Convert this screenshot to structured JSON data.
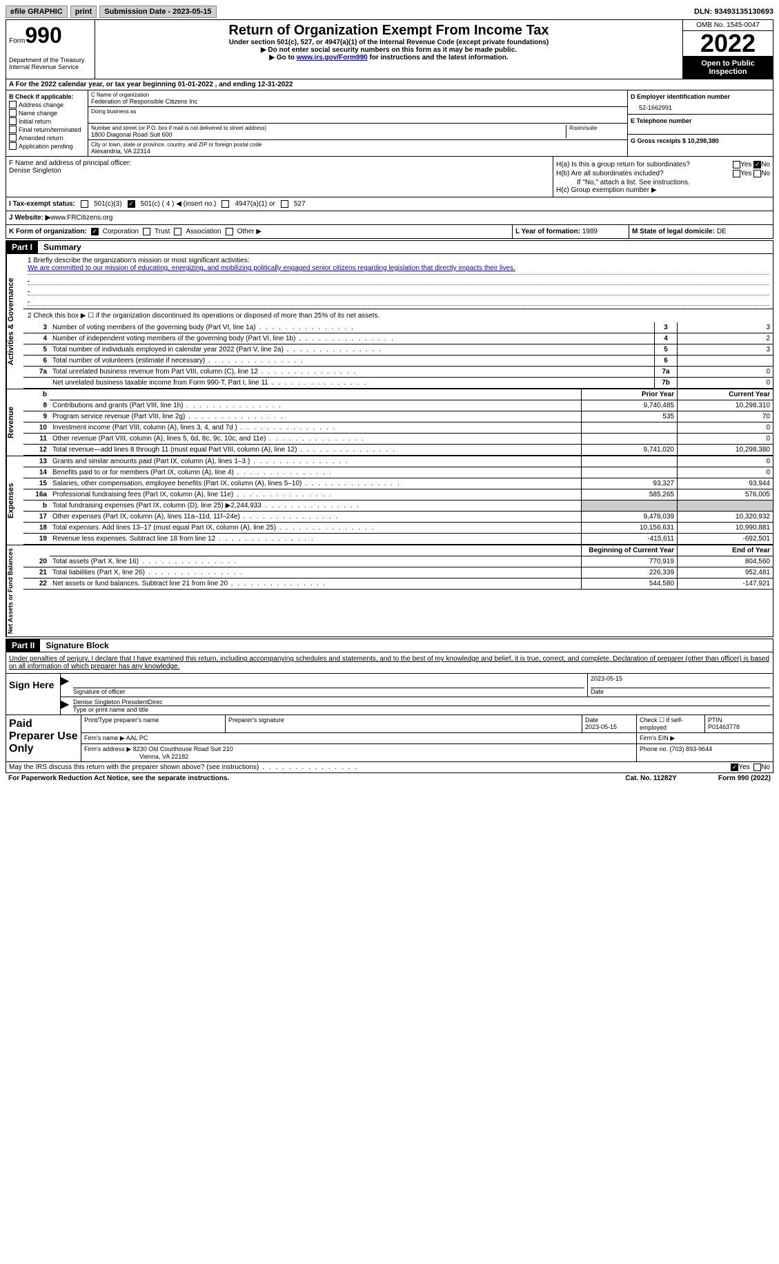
{
  "topbar": {
    "efile": "efile GRAPHIC",
    "print": "print",
    "sub_label": "Submission Date - ",
    "sub_date": "2023-05-15",
    "dln_label": "DLN: ",
    "dln": "93493135130693"
  },
  "header": {
    "form_word": "Form",
    "form_num": "990",
    "dept": "Department of the Treasury Internal Revenue Service",
    "title": "Return of Organization Exempt From Income Tax",
    "subtitle": "Under section 501(c), 527, or 4947(a)(1) of the Internal Revenue Code (except private foundations)",
    "instruct1": "▶ Do not enter social security numbers on this form as it may be made public.",
    "instruct2_pre": "▶ Go to ",
    "instruct2_link": "www.irs.gov/Form990",
    "instruct2_post": " for instructions and the latest information.",
    "omb": "OMB No. 1545-0047",
    "year": "2022",
    "inspection": "Open to Public Inspection"
  },
  "row_a": {
    "text": "A For the 2022 calendar year, or tax year beginning ",
    "begin": "01-01-2022",
    "mid": "   , and ending ",
    "end": "12-31-2022"
  },
  "col_b": {
    "label": "B Check if applicable:",
    "opts": [
      "Address change",
      "Name change",
      "Initial return",
      "Final return/terminated",
      "Amended return",
      "Application pending"
    ]
  },
  "org": {
    "c_label": "C Name of organization",
    "name": "Federation of Responsible Citizens Inc",
    "dba_label": "Doing business as",
    "addr_label": "Number and street (or P.O. box if mail is not delivered to street address)",
    "room_label": "Room/suite",
    "addr": "1800 Diagonal Road Suit 600",
    "city_label": "City or town, state or province, country, and ZIP or foreign postal code",
    "city": "Alexandria, VA  22314"
  },
  "right_b": {
    "d_label": "D Employer identification number",
    "ein": "52-1662991",
    "e_label": "E Telephone number",
    "g_label": "G Gross receipts $ ",
    "g_val": "10,298,380"
  },
  "f": {
    "label": "F  Name and address of principal officer:",
    "name": "Denise Singleton"
  },
  "h": {
    "a_label": "H(a)  Is this a group return for subordinates?",
    "b_label": "H(b)  Are all subordinates included?",
    "b_note": "If \"No,\" attach a list. See instructions.",
    "c_label": "H(c)  Group exemption number ▶",
    "yes": "Yes",
    "no": "No"
  },
  "i": {
    "label": "I   Tax-exempt status:",
    "o1": "501(c)(3)",
    "o2": "501(c) ( 4 ) ◀ (insert no.)",
    "o3": "4947(a)(1) or",
    "o4": "527"
  },
  "j": {
    "label": "J   Website: ▶",
    "val": " www.FRCitizens.org"
  },
  "k": {
    "label": "K Form of organization:",
    "opts": [
      "Corporation",
      "Trust",
      "Association",
      "Other ▶"
    ],
    "l_label": "L Year of formation: ",
    "l_val": "1989",
    "m_label": "M State of legal domicile: ",
    "m_val": "DE"
  },
  "part1": {
    "label": "Part I",
    "title": "Summary",
    "sidebar1": "Activities & Governance",
    "sidebar2": "Revenue",
    "sidebar3": "Expenses",
    "sidebar4": "Net Assets or Fund Balances",
    "q1_label": "1  Briefly describe the organization's mission or most significant activities:",
    "q1_text": "We are committed to our mission of educating, energizing, and mobilizing politically engaged senior citizens regarding legislation that directly impacts their lives.",
    "q2": "2   Check this box ▶ ☐  if the organization discontinued its operations or disposed of more than 25% of its net assets.",
    "rows_ag": [
      {
        "n": "3",
        "label": "Number of voting members of the governing body (Part VI, line 1a)",
        "box": "3",
        "val": "3"
      },
      {
        "n": "4",
        "label": "Number of independent voting members of the governing body (Part VI, line 1b)",
        "box": "4",
        "val": "2"
      },
      {
        "n": "5",
        "label": "Total number of individuals employed in calendar year 2022 (Part V, line 2a)",
        "box": "5",
        "val": "3"
      },
      {
        "n": "6",
        "label": "Total number of volunteers (estimate if necessary)",
        "box": "6",
        "val": ""
      },
      {
        "n": "7a",
        "label": "Total unrelated business revenue from Part VIII, column (C), line 12",
        "box": "7a",
        "val": "0"
      },
      {
        "n": "",
        "label": "Net unrelated business taxable income from Form 990-T, Part I, line 11",
        "box": "7b",
        "val": "0"
      }
    ],
    "prior_hdr": "Prior Year",
    "current_hdr": "Current Year",
    "rows_rev": [
      {
        "n": "8",
        "label": "Contributions and grants (Part VIII, line 1h)",
        "p": "9,740,485",
        "c": "10,298,310"
      },
      {
        "n": "9",
        "label": "Program service revenue (Part VIII, line 2g)",
        "p": "535",
        "c": "70"
      },
      {
        "n": "10",
        "label": "Investment income (Part VIII, column (A), lines 3, 4, and 7d )",
        "p": "",
        "c": "0"
      },
      {
        "n": "11",
        "label": "Other revenue (Part VIII, column (A), lines 5, 6d, 8c, 9c, 10c, and 11e)",
        "p": "",
        "c": "0"
      },
      {
        "n": "12",
        "label": "Total revenue—add lines 8 through 11 (must equal Part VIII, column (A), line 12)",
        "p": "9,741,020",
        "c": "10,298,380"
      }
    ],
    "rows_exp": [
      {
        "n": "13",
        "label": "Grants and similar amounts paid (Part IX, column (A), lines 1–3 )",
        "p": "",
        "c": "0"
      },
      {
        "n": "14",
        "label": "Benefits paid to or for members (Part IX, column (A), line 4)",
        "p": "",
        "c": "0"
      },
      {
        "n": "15",
        "label": "Salaries, other compensation, employee benefits (Part IX, column (A), lines 5–10)",
        "p": "93,327",
        "c": "93,944"
      },
      {
        "n": "16a",
        "label": "Professional fundraising fees (Part IX, column (A), line 11e)",
        "p": "585,265",
        "c": "576,005"
      },
      {
        "n": "b",
        "label": "Total fundraising expenses (Part IX, column (D), line 25) ▶2,244,933",
        "p": "shaded",
        "c": "shaded"
      },
      {
        "n": "17",
        "label": "Other expenses (Part IX, column (A), lines 11a–11d, 11f–24e)",
        "p": "9,478,039",
        "c": "10,320,932"
      },
      {
        "n": "18",
        "label": "Total expenses. Add lines 13–17 (must equal Part IX, column (A), line 25)",
        "p": "10,156,631",
        "c": "10,990,881"
      },
      {
        "n": "19",
        "label": "Revenue less expenses. Subtract line 18 from line 12",
        "p": "-415,611",
        "c": "-692,501"
      }
    ],
    "begin_hdr": "Beginning of Current Year",
    "end_hdr": "End of Year",
    "rows_net": [
      {
        "n": "20",
        "label": "Total assets (Part X, line 16)",
        "p": "770,919",
        "c": "804,560"
      },
      {
        "n": "21",
        "label": "Total liabilities (Part X, line 26)",
        "p": "226,339",
        "c": "952,481"
      },
      {
        "n": "22",
        "label": "Net assets or fund balances. Subtract line 21 from line 20",
        "p": "544,580",
        "c": "-147,921"
      }
    ]
  },
  "part2": {
    "label": "Part II",
    "title": "Signature Block",
    "decl": "Under penalties of perjury, I declare that I have examined this return, including accompanying schedules and statements, and to the best of my knowledge and belief, it is true, correct, and complete. Declaration of preparer (other than officer) is based on all information of which preparer has any knowledge.",
    "sign_here": "Sign Here",
    "sig_officer": "Signature of officer",
    "sig_date": "2023-05-15",
    "date_label": "Date",
    "typed_name": "Denise Singleton  PresidentDirec",
    "typed_label": "Type or print name and title",
    "paid_label": "Paid Preparer Use Only",
    "prep_name_label": "Print/Type preparer's name",
    "prep_sig_label": "Preparer's signature",
    "prep_date_label": "Date",
    "prep_date": "2023-05-15",
    "check_self": "Check ☐ if self-employed",
    "ptin_label": "PTIN",
    "ptin": "P01463778",
    "firm_name_label": "Firm's name    ▶",
    "firm_name": "AAL PC",
    "firm_ein_label": "Firm's EIN ▶",
    "firm_addr_label": "Firm's address ▶",
    "firm_addr1": "8230 Old Courthouse Road Suit 210",
    "firm_addr2": "Vienna, VA  22182",
    "phone_label": "Phone no. ",
    "phone": "(703) 893-9644",
    "discuss": "May the IRS discuss this return with the preparer shown above? (see instructions)",
    "yes": "Yes",
    "no": "No"
  },
  "footer": {
    "pra": "For Paperwork Reduction Act Notice, see the separate instructions.",
    "cat": "Cat. No. 11282Y",
    "form": "Form 990 (2022)"
  }
}
